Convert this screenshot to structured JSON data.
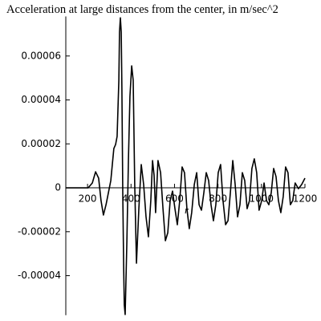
{
  "chart_data": {
    "type": "line",
    "title": "Acceleration  at large distances  from the  center, in m/sec^2",
    "x_label": "r",
    "xlim": [
      100,
      1200
    ],
    "ylim": [
      -5.8e-05,
      7.8e-05
    ],
    "xticks": [
      200,
      400,
      600,
      800,
      1000,
      1200
    ],
    "yticks": [
      -4e-05,
      -2e-05,
      0,
      2e-05,
      4e-05,
      6e-05
    ],
    "color": "#000000",
    "x": [
      100,
      203,
      222,
      237,
      251,
      262,
      273,
      285,
      296,
      307,
      314,
      321,
      329,
      336,
      344,
      347,
      351,
      355,
      358,
      362,
      366,
      369,
      373,
      381,
      388,
      395,
      403,
      410,
      417,
      425,
      436,
      447,
      458,
      469,
      480,
      491,
      499,
      506,
      513,
      524,
      536,
      547,
      558,
      569,
      580,
      591,
      602,
      613,
      624,
      635,
      646,
      657,
      668,
      679,
      691,
      702,
      713,
      724,
      735,
      746,
      757,
      768,
      779,
      790,
      801,
      812,
      823,
      835,
      846,
      857,
      868,
      879,
      890,
      901,
      912,
      923,
      934,
      945,
      956,
      967,
      978,
      989,
      1001,
      1012,
      1023,
      1034,
      1045,
      1056,
      1067,
      1078,
      1089,
      1100,
      1111,
      1122,
      1133,
      1144,
      1155,
      1170,
      1185,
      1200
    ],
    "y": [
      0,
      0,
      2.2e-06,
      7.3e-06,
      4.4e-06,
      -5.8e-06,
      -1.24e-05,
      -7.7e-06,
      -2.2e-06,
      3.3e-06,
      1.06e-05,
      1.79e-05,
      1.97e-05,
      2.34e-05,
      4.89e-05,
      7.09e-05,
      7.74e-05,
      7.09e-05,
      4.53e-05,
      -2.2e-06,
      -3.51e-05,
      -5.33e-05,
      -5.77e-05,
      -2.41e-05,
      1.24e-05,
      4.16e-05,
      5.55e-05,
      4.89e-05,
      1.5e-06,
      -3.43e-05,
      -9.5e-06,
      1.06e-05,
      1.5e-06,
      -1.32e-05,
      -2.23e-05,
      -5.8e-06,
      1.24e-05,
      5.8e-06,
      -1.13e-05,
      1.24e-05,
      6.9e-06,
      -9.5e-06,
      -2.41e-05,
      -2.05e-05,
      -5.8e-06,
      -1.5e-06,
      -9.5e-06,
      -1.68e-05,
      -5.8e-06,
      9.5e-06,
      6.9e-06,
      -9.5e-06,
      -1.86e-05,
      -1.13e-05,
      1.5e-06,
      6.9e-06,
      -7.7e-06,
      -1.02e-05,
      -2.2e-06,
      6.9e-06,
      3.3e-06,
      -7.7e-06,
      -1.5e-05,
      -7.7e-06,
      6.9e-06,
      1.06e-05,
      -5.8e-06,
      -1.68e-05,
      -1.5e-05,
      -2.2e-06,
      1.24e-05,
      1.5e-06,
      -1.32e-05,
      -7.7e-06,
      6.9e-06,
      3.3e-06,
      -9.5e-06,
      -5.8e-06,
      8.8e-06,
      1.32e-05,
      6.9e-06,
      -1.02e-05,
      -5.8e-06,
      2.2e-06,
      -5.8e-06,
      -7.7e-06,
      -2.2e-06,
      8.8e-06,
      5.1e-06,
      -5.8e-06,
      -1.13e-05,
      -4e-06,
      9.5e-06,
      6.9e-06,
      -7.7e-06,
      -5.8e-06,
      2.2e-06,
      -4e-07,
      1.5e-06,
      4.4e-06
    ]
  }
}
